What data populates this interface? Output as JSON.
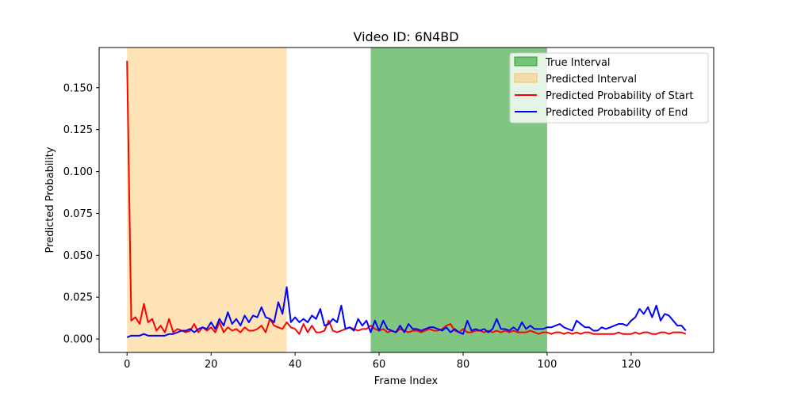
{
  "chart_data": {
    "type": "line",
    "title": "Video ID: 6N4BD",
    "xlabel": "Frame Index",
    "ylabel": "Predicted Probability",
    "xlim": [
      -6.65,
      139.65
    ],
    "ylim": [
      -0.008,
      0.174
    ],
    "xticks": [
      0,
      20,
      40,
      60,
      80,
      100,
      120
    ],
    "yticks": [
      0.0,
      0.025,
      0.05,
      0.075,
      0.1,
      0.125,
      0.15
    ],
    "ytick_labels": [
      "0.000",
      "0.025",
      "0.050",
      "0.075",
      "0.100",
      "0.125",
      "0.150"
    ],
    "grid": false,
    "legend_position": "top-right",
    "spans": [
      {
        "name": "Predicted Interval",
        "x0": 0,
        "x1": 38,
        "color": "#FCC05F",
        "alpha": 0.45
      },
      {
        "name": "True Interval",
        "x0": 58,
        "x1": 100,
        "color": "#2CA02C",
        "alpha": 0.6
      }
    ],
    "series": [
      {
        "name": "Predicted Probability of Start",
        "color": "#FF0000",
        "values": [
          0.166,
          0.011,
          0.013,
          0.009,
          0.021,
          0.01,
          0.012,
          0.005,
          0.008,
          0.004,
          0.012,
          0.004,
          0.006,
          0.005,
          0.004,
          0.005,
          0.009,
          0.004,
          0.007,
          0.005,
          0.007,
          0.004,
          0.01,
          0.004,
          0.007,
          0.005,
          0.006,
          0.004,
          0.007,
          0.005,
          0.005,
          0.006,
          0.008,
          0.004,
          0.012,
          0.008,
          0.007,
          0.006,
          0.01,
          0.007,
          0.006,
          0.003,
          0.009,
          0.004,
          0.008,
          0.004,
          0.004,
          0.005,
          0.011,
          0.005,
          0.004,
          0.005,
          0.006,
          0.007,
          0.006,
          0.005,
          0.006,
          0.006,
          0.008,
          0.006,
          0.005,
          0.006,
          0.004,
          0.005,
          0.004,
          0.006,
          0.005,
          0.004,
          0.005,
          0.005,
          0.004,
          0.005,
          0.006,
          0.005,
          0.005,
          0.006,
          0.008,
          0.009,
          0.005,
          0.004,
          0.006,
          0.004,
          0.004,
          0.005,
          0.005,
          0.004,
          0.005,
          0.004,
          0.005,
          0.004,
          0.005,
          0.004,
          0.005,
          0.004,
          0.004,
          0.004,
          0.005,
          0.004,
          0.003,
          0.004,
          0.004,
          0.003,
          0.004,
          0.004,
          0.003,
          0.004,
          0.003,
          0.004,
          0.003,
          0.004,
          0.004,
          0.003,
          0.003,
          0.003,
          0.003,
          0.003,
          0.003,
          0.004,
          0.003,
          0.003,
          0.003,
          0.004,
          0.003,
          0.004,
          0.004,
          0.003,
          0.003,
          0.004,
          0.004,
          0.003,
          0.004,
          0.004,
          0.004,
          0.003
        ]
      },
      {
        "name": "Predicted Probability of End",
        "color": "#0000FF",
        "values": [
          0.001,
          0.002,
          0.002,
          0.002,
          0.003,
          0.002,
          0.002,
          0.002,
          0.002,
          0.002,
          0.003,
          0.003,
          0.004,
          0.005,
          0.005,
          0.006,
          0.004,
          0.006,
          0.007,
          0.006,
          0.01,
          0.006,
          0.012,
          0.008,
          0.016,
          0.009,
          0.012,
          0.008,
          0.014,
          0.01,
          0.014,
          0.013,
          0.019,
          0.013,
          0.012,
          0.01,
          0.022,
          0.015,
          0.031,
          0.01,
          0.013,
          0.01,
          0.012,
          0.01,
          0.014,
          0.012,
          0.018,
          0.008,
          0.009,
          0.012,
          0.01,
          0.02,
          0.006,
          0.007,
          0.005,
          0.012,
          0.008,
          0.011,
          0.004,
          0.011,
          0.005,
          0.011,
          0.006,
          0.005,
          0.004,
          0.008,
          0.004,
          0.009,
          0.006,
          0.006,
          0.005,
          0.006,
          0.007,
          0.007,
          0.006,
          0.005,
          0.007,
          0.004,
          0.006,
          0.004,
          0.003,
          0.011,
          0.005,
          0.006,
          0.005,
          0.006,
          0.004,
          0.006,
          0.012,
          0.006,
          0.006,
          0.005,
          0.007,
          0.005,
          0.01,
          0.006,
          0.008,
          0.006,
          0.006,
          0.006,
          0.007,
          0.007,
          0.008,
          0.009,
          0.007,
          0.006,
          0.005,
          0.011,
          0.009,
          0.007,
          0.007,
          0.005,
          0.005,
          0.007,
          0.006,
          0.007,
          0.008,
          0.009,
          0.009,
          0.008,
          0.011,
          0.013,
          0.018,
          0.015,
          0.019,
          0.013,
          0.02,
          0.011,
          0.015,
          0.014,
          0.011,
          0.008,
          0.008,
          0.005
        ]
      }
    ]
  }
}
